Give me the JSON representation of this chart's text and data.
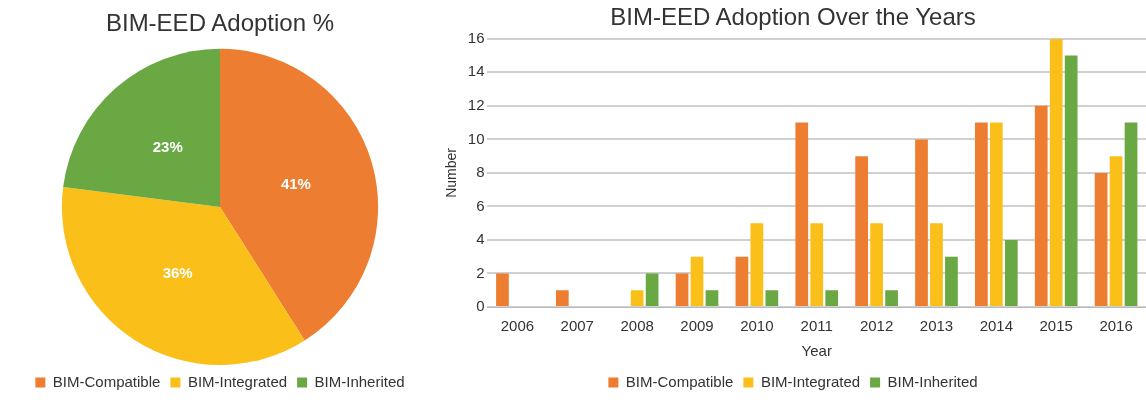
{
  "chart_data": [
    {
      "type": "pie",
      "title": "BIM-EED Adoption %",
      "categories": [
        "BIM-Compatible",
        "BIM-Integrated",
        "BIM-Inherited"
      ],
      "values": [
        41,
        36,
        23
      ],
      "colors": [
        "#ed7d31",
        "#fbbf1a",
        "#6aa843"
      ],
      "value_labels": [
        "41%",
        "36%",
        "23%"
      ],
      "legend": "bottom"
    },
    {
      "type": "bar",
      "title": "BIM-EED Adoption Over the Years",
      "xlabel": "Year",
      "ylabel": "Number",
      "categories": [
        "2006",
        "2007",
        "2008",
        "2009",
        "2010",
        "2011",
        "2012",
        "2013",
        "2014",
        "2015",
        "2016"
      ],
      "series": [
        {
          "name": "BIM-Compatible",
          "color": "#ed7d31",
          "values": [
            2,
            1,
            0,
            2,
            3,
            11,
            9,
            10,
            11,
            12,
            8
          ]
        },
        {
          "name": "BIM-Integrated",
          "color": "#fbbf1a",
          "values": [
            0,
            0,
            1,
            3,
            5,
            5,
            5,
            5,
            11,
            16,
            9
          ]
        },
        {
          "name": "BIM-Inherited",
          "color": "#6aa843",
          "values": [
            0,
            0,
            2,
            1,
            1,
            1,
            1,
            3,
            4,
            15,
            11
          ]
        }
      ],
      "ylim": [
        0,
        16
      ],
      "yticks": [
        0,
        2,
        4,
        6,
        8,
        10,
        12,
        14,
        16
      ],
      "grid": "y",
      "legend": "bottom"
    }
  ]
}
